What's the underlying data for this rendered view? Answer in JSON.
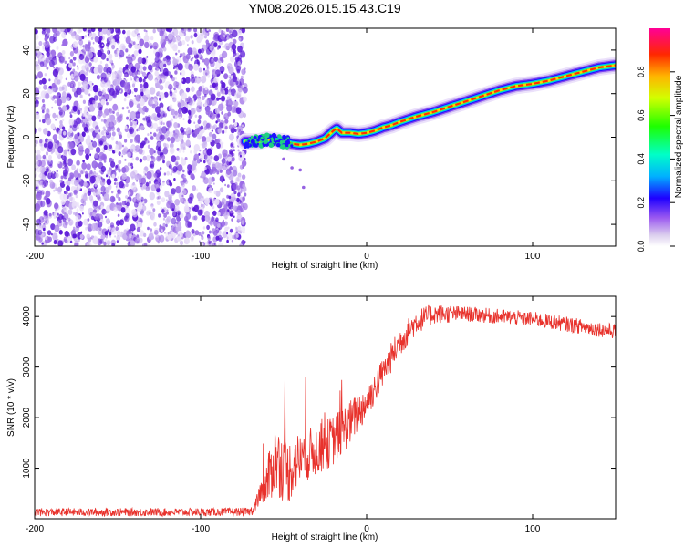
{
  "figure_title": "YM08.2026.015.15.43.C19",
  "colors": {
    "snr_line": "#e8322c",
    "scatter": "#6a1fd6",
    "axis": "#000000"
  },
  "chart_data": [
    {
      "type": "heatmap",
      "title": "YM08.2026.015.15.43.C19",
      "xlabel": "Height of straight line (km)",
      "ylabel": "Frequency (Hz)",
      "xlim": [
        -200,
        150
      ],
      "ylim": [
        -50,
        50
      ],
      "xticks": [
        -200,
        -100,
        0,
        100
      ],
      "yticks": [
        -40,
        -20,
        0,
        20,
        40
      ],
      "noise_region_x": [
        -200,
        -73
      ],
      "track_x": [
        -73,
        -65,
        -60,
        -55,
        -50,
        -45,
        -40,
        -35,
        -30,
        -25,
        -20,
        -18,
        -15,
        -10,
        -5,
        0,
        5,
        10,
        15,
        20,
        30,
        40,
        50,
        60,
        70,
        80,
        90,
        100,
        110,
        120,
        130,
        140,
        150
      ],
      "track_freq": [
        -2,
        -2,
        -1,
        -1.5,
        -2,
        -3,
        -3.5,
        -3,
        -2,
        -0.5,
        3,
        4,
        2,
        2,
        1.5,
        2,
        3,
        4.5,
        5.5,
        7,
        9.5,
        11.5,
        14,
        16.5,
        19,
        21.5,
        23.5,
        24.5,
        26,
        28,
        30,
        32,
        33
      ],
      "scatter_points": [
        [
          -50,
          -10
        ],
        [
          -45,
          -14
        ],
        [
          -40,
          -15
        ],
        [
          -38,
          -23
        ]
      ],
      "colorbar": {
        "label": "Normalized spectral amplitude",
        "range": [
          0,
          1
        ],
        "ticks": [
          "0.0",
          "0.2",
          "0.4",
          "0.6",
          "0.8"
        ]
      }
    },
    {
      "type": "line",
      "title": "",
      "xlabel": "Height of straight line (km)",
      "ylabel": "SNR (10 * v/v)",
      "xlim": [
        -200,
        150
      ],
      "ylim": [
        0,
        4400
      ],
      "xticks": [
        -200,
        -100,
        0,
        100
      ],
      "yticks": [
        1000,
        2000,
        3000,
        4000
      ],
      "series": [
        {
          "name": "SNR",
          "x": [
            -200,
            -150,
            -100,
            -70,
            -62,
            -55,
            -48,
            -40,
            -30,
            -20,
            -10,
            0,
            10,
            20,
            30,
            40,
            60,
            80,
            100,
            120,
            150
          ],
          "values": [
            130,
            130,
            130,
            140,
            500,
            1200,
            900,
            1200,
            1350,
            1550,
            1900,
            2300,
            2900,
            3500,
            3900,
            4050,
            4050,
            4000,
            3950,
            3850,
            3700
          ],
          "noise_amplitude": [
            80,
            80,
            80,
            80,
            350,
            700,
            650,
            550,
            500,
            500,
            450,
            350,
            300,
            300,
            250,
            200,
            150,
            150,
            150,
            150,
            150
          ]
        }
      ]
    }
  ]
}
